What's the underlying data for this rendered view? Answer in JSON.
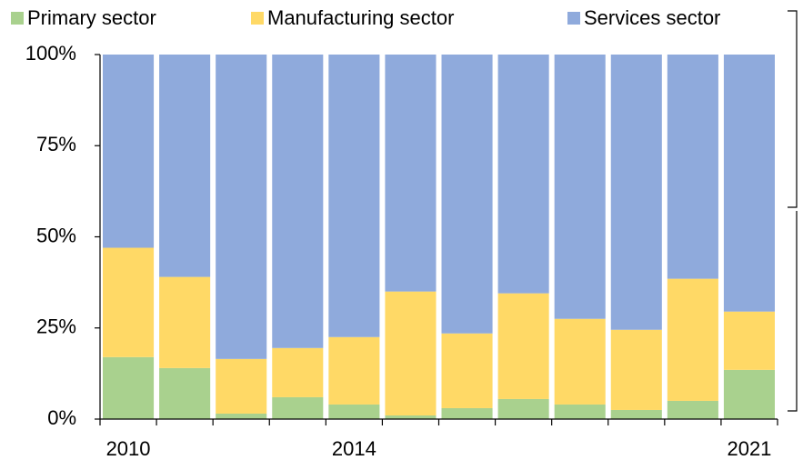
{
  "chart_data": {
    "type": "stacked_bar",
    "categories": [
      "2010",
      null,
      null,
      null,
      "2014",
      null,
      null,
      null,
      null,
      null,
      null,
      "2021"
    ],
    "series": [
      {
        "name": "Primary sector",
        "color": "#a9d18e",
        "values": [
          17,
          14,
          1.5,
          6,
          4,
          1,
          3,
          5.5,
          4,
          2.5,
          5,
          13.5
        ]
      },
      {
        "name": "Manufacturing sector",
        "color": "#ffd966",
        "values": [
          30,
          25,
          15,
          13.5,
          18.5,
          34,
          20.5,
          29,
          23.5,
          22,
          33.5,
          16
        ]
      },
      {
        "name": "Services sector",
        "color": "#8faadc",
        "values": [
          53,
          61,
          83.5,
          80.5,
          77.5,
          65,
          76.5,
          65.5,
          72.5,
          75.5,
          61.5,
          70.5
        ]
      }
    ],
    "ylim": [
      0,
      100
    ],
    "yticks": [
      {
        "value": 0,
        "label": "0%"
      },
      {
        "value": 25,
        "label": "25%"
      },
      {
        "value": 50,
        "label": "50%"
      },
      {
        "value": 75,
        "label": "75%"
      },
      {
        "value": 100,
        "label": "100%"
      }
    ],
    "legend": "top"
  }
}
